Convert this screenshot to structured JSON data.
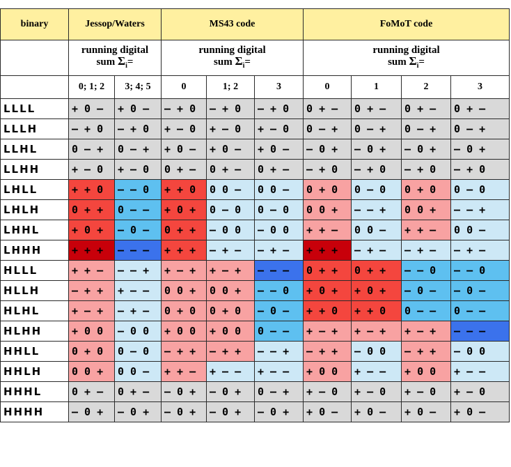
{
  "title_row": {
    "binary": "binary",
    "jw": "Jessop/Waters",
    "ms43": "MS43 code",
    "fomot": "FoMoT code"
  },
  "rds": {
    "line1": "running digital",
    "line2": "sum",
    "sigma": "Σ",
    "sub": "i",
    "eq": "="
  },
  "rds_columns": [
    "0; 1; 2",
    "3; 4; 5",
    "0",
    "1; 2",
    "3",
    "0",
    "1",
    "2",
    "3"
  ],
  "colors": {
    "grey": "#d9d9d9",
    "lightred": "#f8a2a2",
    "red": "#f4463e",
    "darkred": "#c8000a",
    "lightblue": "#cde8f6",
    "blue": "#5ec0f0",
    "darkblue": "#3b72ec"
  },
  "rows": [
    {
      "bin": "LLLL",
      "cells": [
        {
          "t": "+ 0 –",
          "c": "grey"
        },
        {
          "t": "+ 0 –",
          "c": "grey"
        },
        {
          "t": "– + 0",
          "c": "grey"
        },
        {
          "t": "– + 0",
          "c": "grey"
        },
        {
          "t": "– + 0",
          "c": "grey"
        },
        {
          "t": "0 + –",
          "c": "grey"
        },
        {
          "t": "0 + –",
          "c": "grey"
        },
        {
          "t": "0 + –",
          "c": "grey"
        },
        {
          "t": "0 + –",
          "c": "grey"
        }
      ]
    },
    {
      "bin": "LLLH",
      "cells": [
        {
          "t": "– + 0",
          "c": "grey"
        },
        {
          "t": "– + 0",
          "c": "grey"
        },
        {
          "t": "+ – 0",
          "c": "grey"
        },
        {
          "t": "+ – 0",
          "c": "grey"
        },
        {
          "t": "+ – 0",
          "c": "grey"
        },
        {
          "t": "0 – +",
          "c": "grey"
        },
        {
          "t": "0 – +",
          "c": "grey"
        },
        {
          "t": "0 – +",
          "c": "grey"
        },
        {
          "t": "0 – +",
          "c": "grey"
        }
      ]
    },
    {
      "bin": "LLHL",
      "cells": [
        {
          "t": "0 – +",
          "c": "grey"
        },
        {
          "t": "0 – +",
          "c": "grey"
        },
        {
          "t": "+ 0 –",
          "c": "grey"
        },
        {
          "t": "+ 0 –",
          "c": "grey"
        },
        {
          "t": "+ 0 –",
          "c": "grey"
        },
        {
          "t": "– 0 +",
          "c": "grey"
        },
        {
          "t": "– 0 +",
          "c": "grey"
        },
        {
          "t": "– 0 +",
          "c": "grey"
        },
        {
          "t": "– 0 +",
          "c": "grey"
        }
      ]
    },
    {
      "bin": "LLHH",
      "cells": [
        {
          "t": "+ – 0",
          "c": "grey"
        },
        {
          "t": "+ – 0",
          "c": "grey"
        },
        {
          "t": "0 + –",
          "c": "grey"
        },
        {
          "t": "0 + –",
          "c": "grey"
        },
        {
          "t": "0 + –",
          "c": "grey"
        },
        {
          "t": "– + 0",
          "c": "grey"
        },
        {
          "t": "– + 0",
          "c": "grey"
        },
        {
          "t": "– + 0",
          "c": "grey"
        },
        {
          "t": "– + 0",
          "c": "grey"
        }
      ]
    },
    {
      "bin": "LHLL",
      "cells": [
        {
          "t": "+ + 0",
          "c": "red"
        },
        {
          "t": "– – 0",
          "c": "blue"
        },
        {
          "t": "+ + 0",
          "c": "red"
        },
        {
          "t": "0 0 –",
          "c": "lightblue"
        },
        {
          "t": "0 0 –",
          "c": "lightblue"
        },
        {
          "t": "0 + 0",
          "c": "lightred"
        },
        {
          "t": "0 – 0",
          "c": "lightblue"
        },
        {
          "t": "0 + 0",
          "c": "lightred"
        },
        {
          "t": "0 – 0",
          "c": "lightblue"
        }
      ]
    },
    {
      "bin": "LHLH",
      "cells": [
        {
          "t": "0 + +",
          "c": "red"
        },
        {
          "t": "0 – –",
          "c": "blue"
        },
        {
          "t": "+ 0 +",
          "c": "red"
        },
        {
          "t": "0 – 0",
          "c": "lightblue"
        },
        {
          "t": "0 – 0",
          "c": "lightblue"
        },
        {
          "t": "0 0 +",
          "c": "lightred"
        },
        {
          "t": "– – +",
          "c": "lightblue"
        },
        {
          "t": "0 0 +",
          "c": "lightred"
        },
        {
          "t": "– – +",
          "c": "lightblue"
        }
      ]
    },
    {
      "bin": "LHHL",
      "cells": [
        {
          "t": "+ 0 +",
          "c": "red"
        },
        {
          "t": "– 0 –",
          "c": "blue"
        },
        {
          "t": "0 + +",
          "c": "red"
        },
        {
          "t": "– 0 0",
          "c": "lightblue"
        },
        {
          "t": "– 0 0",
          "c": "lightblue"
        },
        {
          "t": "+ + –",
          "c": "lightred"
        },
        {
          "t": "0 0 –",
          "c": "lightblue"
        },
        {
          "t": "+ + –",
          "c": "lightred"
        },
        {
          "t": "0 0 –",
          "c": "lightblue"
        }
      ]
    },
    {
      "bin": "LHHH",
      "cells": [
        {
          "t": "+ + +",
          "c": "darkred"
        },
        {
          "t": "– – –",
          "c": "darkblue"
        },
        {
          "t": "+ + +",
          "c": "red"
        },
        {
          "t": "– + –",
          "c": "lightblue"
        },
        {
          "t": "– + –",
          "c": "lightblue"
        },
        {
          "t": "+ + +",
          "c": "darkred"
        },
        {
          "t": "– + –",
          "c": "lightblue"
        },
        {
          "t": "– + –",
          "c": "lightblue"
        },
        {
          "t": "– + –",
          "c": "lightblue"
        }
      ]
    },
    {
      "bin": "HLLL",
      "cells": [
        {
          "t": "+ + –",
          "c": "lightred"
        },
        {
          "t": "– – +",
          "c": "lightblue"
        },
        {
          "t": "+ – +",
          "c": "lightred"
        },
        {
          "t": "+ – +",
          "c": "lightred"
        },
        {
          "t": "– – –",
          "c": "darkblue"
        },
        {
          "t": "0 + +",
          "c": "red"
        },
        {
          "t": "0 + +",
          "c": "red"
        },
        {
          "t": "– – 0",
          "c": "blue"
        },
        {
          "t": "– – 0",
          "c": "blue"
        }
      ]
    },
    {
      "bin": "HLLH",
      "cells": [
        {
          "t": "– + +",
          "c": "lightred"
        },
        {
          "t": "+ – –",
          "c": "lightblue"
        },
        {
          "t": "0 0 +",
          "c": "lightred"
        },
        {
          "t": "0 0 +",
          "c": "lightred"
        },
        {
          "t": "– – 0",
          "c": "blue"
        },
        {
          "t": "+ 0 +",
          "c": "red"
        },
        {
          "t": "+ 0 +",
          "c": "red"
        },
        {
          "t": "– 0 –",
          "c": "blue"
        },
        {
          "t": "– 0 –",
          "c": "blue"
        }
      ]
    },
    {
      "bin": "HLHL",
      "cells": [
        {
          "t": "+ – +",
          "c": "lightred"
        },
        {
          "t": "– + –",
          "c": "lightblue"
        },
        {
          "t": "0 + 0",
          "c": "lightred"
        },
        {
          "t": "0 + 0",
          "c": "lightred"
        },
        {
          "t": "– 0 –",
          "c": "blue"
        },
        {
          "t": "+ + 0",
          "c": "red"
        },
        {
          "t": "+ + 0",
          "c": "red"
        },
        {
          "t": "0 – –",
          "c": "blue"
        },
        {
          "t": "0 – –",
          "c": "blue"
        }
      ]
    },
    {
      "bin": "HLHH",
      "cells": [
        {
          "t": "+ 0 0",
          "c": "lightred"
        },
        {
          "t": "– 0 0",
          "c": "lightblue"
        },
        {
          "t": "+ 0 0",
          "c": "lightred"
        },
        {
          "t": "+ 0 0",
          "c": "lightred"
        },
        {
          "t": "0 – –",
          "c": "blue"
        },
        {
          "t": "+ – +",
          "c": "lightred"
        },
        {
          "t": "+ – +",
          "c": "lightred"
        },
        {
          "t": "+ – +",
          "c": "lightred"
        },
        {
          "t": "– – –",
          "c": "darkblue"
        }
      ]
    },
    {
      "bin": "HHLL",
      "cells": [
        {
          "t": "0 + 0",
          "c": "lightred"
        },
        {
          "t": "0 – 0",
          "c": "lightblue"
        },
        {
          "t": "– + +",
          "c": "lightred"
        },
        {
          "t": "– + +",
          "c": "lightred"
        },
        {
          "t": "– – +",
          "c": "lightblue"
        },
        {
          "t": "– + +",
          "c": "lightred"
        },
        {
          "t": "– 0 0",
          "c": "lightblue"
        },
        {
          "t": "– + +",
          "c": "lightred"
        },
        {
          "t": "– 0 0",
          "c": "lightblue"
        }
      ]
    },
    {
      "bin": "HHLH",
      "cells": [
        {
          "t": "0 0 +",
          "c": "lightred"
        },
        {
          "t": "0 0 –",
          "c": "lightblue"
        },
        {
          "t": "+ + –",
          "c": "lightred"
        },
        {
          "t": "+ – –",
          "c": "lightblue"
        },
        {
          "t": "+ – –",
          "c": "lightblue"
        },
        {
          "t": "+ 0 0",
          "c": "lightred"
        },
        {
          "t": "+ – –",
          "c": "lightblue"
        },
        {
          "t": "+ 0 0",
          "c": "lightred"
        },
        {
          "t": "+ – –",
          "c": "lightblue"
        }
      ]
    },
    {
      "bin": "HHHL",
      "cells": [
        {
          "t": "0 + –",
          "c": "grey"
        },
        {
          "t": "0 + –",
          "c": "grey"
        },
        {
          "t": "– 0 +",
          "c": "grey"
        },
        {
          "t": "– 0 +",
          "c": "grey"
        },
        {
          "t": "0 – +",
          "c": "grey"
        },
        {
          "t": "+ – 0",
          "c": "grey"
        },
        {
          "t": "+ – 0",
          "c": "grey"
        },
        {
          "t": "+ – 0",
          "c": "grey"
        },
        {
          "t": "+ – 0",
          "c": "grey"
        }
      ]
    },
    {
      "bin": "HHHH",
      "cells": [
        {
          "t": "– 0 +",
          "c": "grey"
        },
        {
          "t": "– 0 +",
          "c": "grey"
        },
        {
          "t": "– 0 +",
          "c": "grey"
        },
        {
          "t": "– 0 +",
          "c": "grey"
        },
        {
          "t": "– 0 +",
          "c": "grey"
        },
        {
          "t": "+ 0 –",
          "c": "grey"
        },
        {
          "t": "+ 0 –",
          "c": "grey"
        },
        {
          "t": "+ 0 –",
          "c": "grey"
        },
        {
          "t": "+ 0 –",
          "c": "grey"
        }
      ]
    }
  ]
}
